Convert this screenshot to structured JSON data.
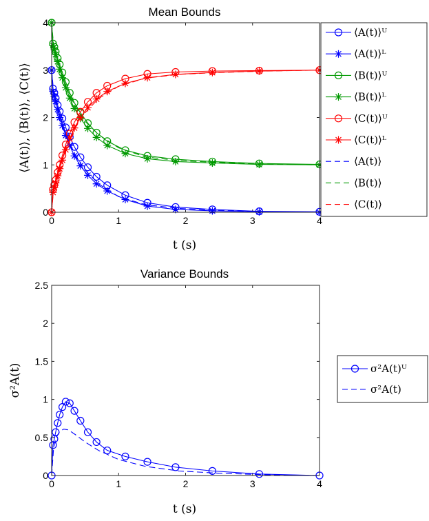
{
  "chart_data": [
    {
      "type": "line",
      "title": "Mean Bounds",
      "xlabel": "t (s)",
      "ylabel": "⟨A(t)⟩, ⟨B(t)⟩, ⟨C(t)⟩",
      "xlim": [
        0,
        4
      ],
      "ylim": [
        0,
        4
      ],
      "xticks": [
        "0",
        "1",
        "2",
        "3",
        "4"
      ],
      "yticks": [
        "0",
        "1",
        "2",
        "3",
        "4"
      ],
      "grid": false,
      "legend_position": "outside-right",
      "series": [
        {
          "name": "⟨A(t)⟩ᵁ",
          "color": "#0000ff",
          "line": "solid",
          "marker": "circle",
          "x": [
            0,
            0.02,
            0.04,
            0.06,
            0.09,
            0.12,
            0.16,
            0.21,
            0.27,
            0.34,
            0.43,
            0.54,
            0.67,
            0.83,
            1.1,
            1.43,
            1.85,
            2.4,
            3.1,
            4.0
          ],
          "y": [
            3.0,
            2.61,
            2.52,
            2.41,
            2.26,
            2.13,
            1.98,
            1.79,
            1.59,
            1.38,
            1.16,
            0.95,
            0.75,
            0.57,
            0.36,
            0.2,
            0.11,
            0.06,
            0.02,
            0.01
          ]
        },
        {
          "name": "⟨A(t)⟩ᴸ",
          "color": "#0000ff",
          "line": "solid",
          "marker": "star",
          "x": [
            0,
            0.02,
            0.04,
            0.06,
            0.09,
            0.12,
            0.16,
            0.21,
            0.27,
            0.34,
            0.43,
            0.54,
            0.67,
            0.83,
            1.1,
            1.43,
            1.85,
            2.4,
            3.1,
            4.0
          ],
          "y": [
            3.0,
            2.55,
            2.45,
            2.34,
            2.17,
            2.0,
            1.83,
            1.62,
            1.41,
            1.19,
            0.98,
            0.78,
            0.6,
            0.45,
            0.27,
            0.13,
            0.06,
            0.03,
            0.01,
            0.0
          ]
        },
        {
          "name": "⟨B(t)⟩ᵁ",
          "color": "#009900",
          "line": "solid",
          "marker": "circle",
          "x": [
            0,
            0.02,
            0.04,
            0.06,
            0.09,
            0.12,
            0.16,
            0.21,
            0.27,
            0.34,
            0.43,
            0.54,
            0.67,
            0.83,
            1.1,
            1.43,
            1.85,
            2.4,
            3.1,
            4.0
          ],
          "y": [
            4.0,
            3.56,
            3.49,
            3.39,
            3.25,
            3.12,
            2.95,
            2.75,
            2.52,
            2.31,
            2.1,
            1.88,
            1.68,
            1.5,
            1.31,
            1.19,
            1.12,
            1.07,
            1.03,
            1.01
          ]
        },
        {
          "name": "⟨B(t)⟩ᴸ",
          "color": "#009900",
          "line": "solid",
          "marker": "star",
          "x": [
            0,
            0.02,
            0.04,
            0.06,
            0.09,
            0.12,
            0.16,
            0.21,
            0.27,
            0.34,
            0.43,
            0.54,
            0.67,
            0.83,
            1.1,
            1.43,
            1.85,
            2.4,
            3.1,
            4.0
          ],
          "y": [
            4.0,
            3.52,
            3.43,
            3.33,
            3.18,
            3.02,
            2.84,
            2.63,
            2.41,
            2.19,
            1.98,
            1.77,
            1.58,
            1.41,
            1.24,
            1.13,
            1.07,
            1.04,
            1.01,
            1.0
          ]
        },
        {
          "name": "⟨C(t)⟩ᵁ",
          "color": "#ff0000",
          "line": "solid",
          "marker": "circle",
          "x": [
            0,
            0.02,
            0.04,
            0.06,
            0.09,
            0.12,
            0.16,
            0.21,
            0.27,
            0.34,
            0.43,
            0.54,
            0.67,
            0.83,
            1.1,
            1.43,
            1.85,
            2.4,
            3.1,
            4.0
          ],
          "y": [
            0.0,
            0.48,
            0.58,
            0.68,
            0.84,
            1.0,
            1.2,
            1.43,
            1.66,
            1.9,
            2.12,
            2.33,
            2.52,
            2.67,
            2.82,
            2.92,
            2.96,
            2.98,
            2.99,
            3.0
          ]
        },
        {
          "name": "⟨C(t)⟩ᴸ",
          "color": "#ff0000",
          "line": "solid",
          "marker": "star",
          "x": [
            0,
            0.02,
            0.04,
            0.06,
            0.09,
            0.12,
            0.16,
            0.21,
            0.27,
            0.34,
            0.43,
            0.54,
            0.67,
            0.83,
            1.1,
            1.43,
            1.85,
            2.4,
            3.1,
            4.0
          ],
          "y": [
            0.0,
            0.42,
            0.52,
            0.62,
            0.77,
            0.92,
            1.1,
            1.32,
            1.55,
            1.78,
            2.0,
            2.21,
            2.39,
            2.55,
            2.72,
            2.84,
            2.91,
            2.95,
            2.98,
            3.0
          ]
        },
        {
          "name": "⟨A(t)⟩",
          "color": "#0000ff",
          "line": "dashed",
          "marker": "none",
          "x": [
            0,
            0.03,
            0.07,
            0.12,
            0.18,
            0.25,
            0.35,
            0.5,
            0.7,
            1.0,
            1.4,
            1.9,
            2.5,
            3.2,
            4.0
          ],
          "y": [
            3.0,
            2.53,
            2.33,
            2.06,
            1.79,
            1.52,
            1.22,
            0.89,
            0.6,
            0.33,
            0.16,
            0.08,
            0.04,
            0.01,
            0.0
          ]
        },
        {
          "name": "⟨B(t)⟩",
          "color": "#009900",
          "line": "dashed",
          "marker": "none",
          "x": [
            0,
            0.03,
            0.07,
            0.12,
            0.18,
            0.25,
            0.35,
            0.5,
            0.7,
            1.0,
            1.4,
            1.9,
            2.5,
            3.2,
            4.0
          ],
          "y": [
            4.0,
            3.5,
            3.3,
            3.06,
            2.8,
            2.54,
            2.24,
            1.92,
            1.64,
            1.36,
            1.17,
            1.09,
            1.05,
            1.02,
            1.0
          ]
        },
        {
          "name": "⟨C(t)⟩",
          "color": "#ff0000",
          "line": "dashed",
          "marker": "none",
          "x": [
            0,
            0.03,
            0.07,
            0.12,
            0.18,
            0.25,
            0.35,
            0.5,
            0.7,
            1.0,
            1.4,
            1.9,
            2.5,
            3.2,
            4.0
          ],
          "y": [
            0.0,
            0.5,
            0.7,
            0.95,
            1.22,
            1.48,
            1.78,
            2.1,
            2.4,
            2.66,
            2.83,
            2.91,
            2.95,
            2.98,
            3.0
          ]
        }
      ]
    },
    {
      "type": "line",
      "title": "Variance Bounds",
      "xlabel": "t (s)",
      "ylabel": "σ²A(t)",
      "xlim": [
        0,
        4
      ],
      "ylim": [
        0,
        2.5
      ],
      "xticks": [
        "0",
        "1",
        "2",
        "3",
        "4"
      ],
      "yticks": [
        "0",
        "0.5",
        "1",
        "1.5",
        "2",
        "2.5"
      ],
      "grid": false,
      "legend_position": "outside-right",
      "series": [
        {
          "name": "σ²A(t)ᵁ",
          "color": "#0000ff",
          "line": "solid",
          "marker": "circle",
          "x": [
            0,
            0.02,
            0.04,
            0.06,
            0.09,
            0.12,
            0.16,
            0.21,
            0.27,
            0.34,
            0.43,
            0.54,
            0.67,
            0.83,
            1.1,
            1.43,
            1.85,
            2.4,
            3.1,
            4.0
          ],
          "y": [
            0.0,
            0.4,
            0.48,
            0.57,
            0.69,
            0.8,
            0.9,
            0.97,
            0.95,
            0.85,
            0.72,
            0.57,
            0.44,
            0.33,
            0.25,
            0.18,
            0.11,
            0.06,
            0.02,
            0.0
          ]
        },
        {
          "name": "σ²A(t)",
          "color": "#0000ff",
          "line": "dashed",
          "marker": "none",
          "x": [
            0,
            0.03,
            0.07,
            0.12,
            0.18,
            0.25,
            0.35,
            0.5,
            0.7,
            1.0,
            1.4,
            1.9,
            2.5,
            3.2,
            4.0
          ],
          "y": [
            0.0,
            0.37,
            0.5,
            0.58,
            0.61,
            0.6,
            0.54,
            0.44,
            0.33,
            0.21,
            0.12,
            0.06,
            0.03,
            0.01,
            0.0
          ]
        }
      ]
    }
  ]
}
